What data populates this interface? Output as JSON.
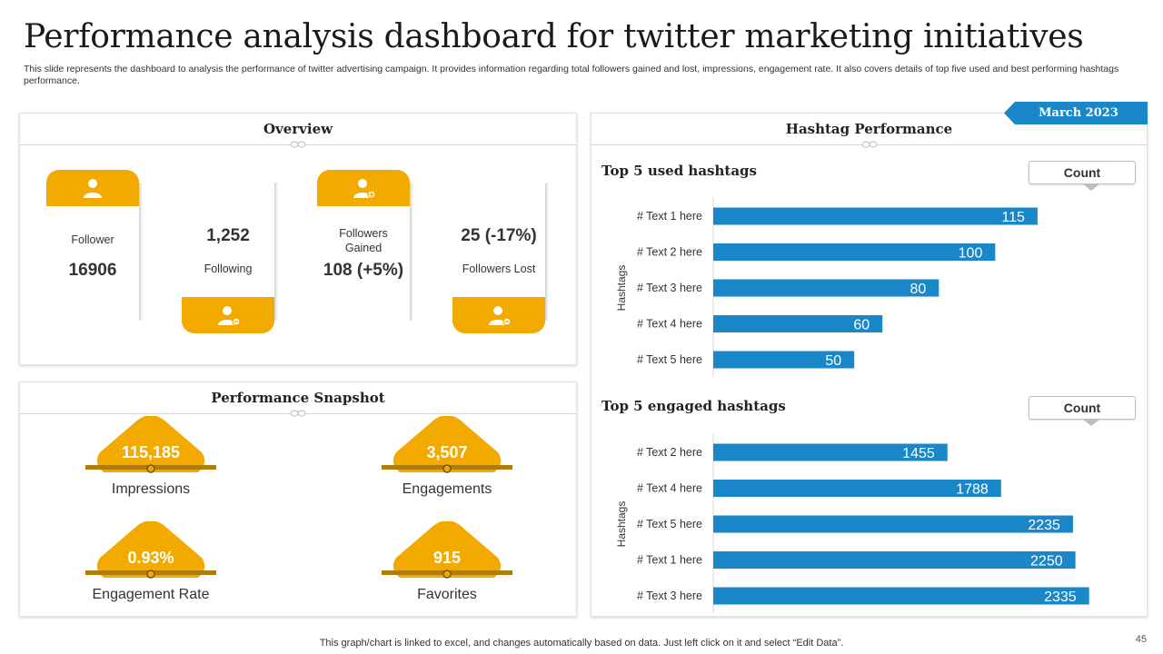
{
  "header": {
    "title": "Performance analysis dashboard for twitter marketing initiatives",
    "description": "This slide represents the dashboard to analysis the performance of twitter advertising campaign. It provides information regarding total followers gained and lost, impressions, engagement rate. It also covers details of top five used and best performing hashtags performance."
  },
  "overview": {
    "title": "Overview",
    "follower": {
      "label": "Follower",
      "value": "16906"
    },
    "following": {
      "label": "Following",
      "value": "1,252"
    },
    "followers_gained": {
      "label": "Followers Gained",
      "value": "108 (+5%)"
    },
    "followers_lost": {
      "label": "Followers  Lost",
      "value": "25 (-17%)"
    }
  },
  "snapshot": {
    "title": "Performance Snapshot",
    "impressions": {
      "label": "Impressions",
      "value": "115,185"
    },
    "engagements": {
      "label": "Engagements",
      "value": "3,507"
    },
    "engagement_rate": {
      "label": "Engagement Rate",
      "value": "0.93%"
    },
    "favorites": {
      "label": "Favorites",
      "value": "915"
    }
  },
  "hashtag_panel": {
    "title": "Hashtag Performance",
    "date": "March 2023",
    "used_title": "Top 5 used hashtags",
    "engaged_title": "Top 5 engaged hashtags",
    "count_label": "Count"
  },
  "colors": {
    "accent": "#f2a900",
    "bar": "#1a87c9",
    "date_tag": "#1a87c9"
  },
  "chart_data": [
    {
      "type": "bar",
      "orientation": "horizontal",
      "title": "Top 5 used hashtags",
      "ylabel": "Hashtags",
      "categories": [
        "# Text 1 here",
        "# Text 2 here",
        "# Text 3 here",
        "# Text 4 here",
        "# Text 5 here"
      ],
      "values": [
        115,
        100,
        80,
        60,
        50
      ],
      "grid": false,
      "legend": "Count"
    },
    {
      "type": "bar",
      "orientation": "horizontal",
      "title": "Top 5 engaged hashtags",
      "ylabel": "Hashtags",
      "categories": [
        "# Text 2 here",
        "# Text 4 here",
        "# Text 5 here",
        "# Text 1 here",
        "# Text 3 here"
      ],
      "values": [
        1455,
        1788,
        2235,
        2250,
        2335
      ],
      "grid": false,
      "legend": "Count"
    }
  ],
  "footer": {
    "note": "This graph/chart is linked to excel,  and changes automatically based on data. Just left click on it and select “Edit Data”.",
    "page_number": "45"
  }
}
